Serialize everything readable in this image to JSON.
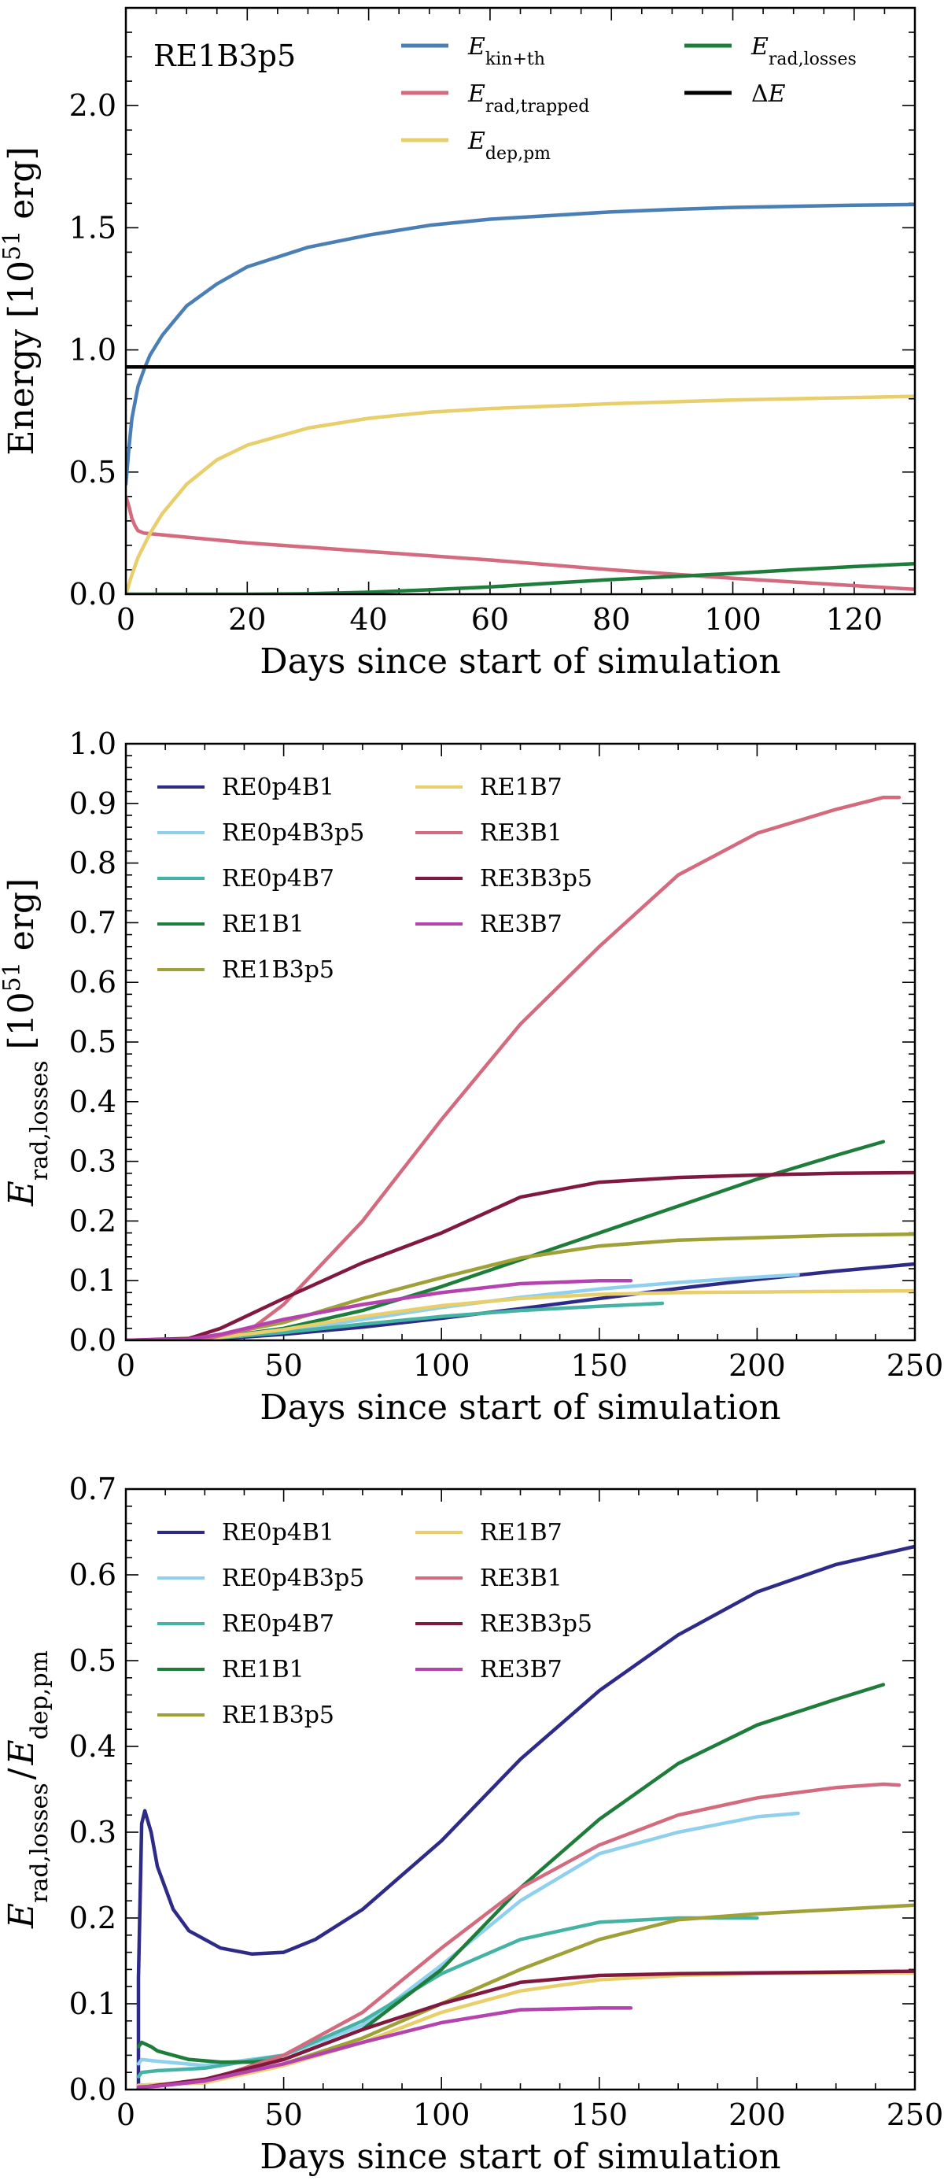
{
  "chart_data": [
    {
      "type": "line",
      "annotation": "RE1B3p5",
      "xlabel": "Days since start of simulation",
      "ylabel": "Energy [10^51 erg]",
      "ylabel_parts": {
        "pre": "Energy [10",
        "sup": "51",
        "post": " erg]"
      },
      "xlim": [
        0,
        130
      ],
      "ylim": [
        0,
        2.4
      ],
      "xticks": [
        0,
        20,
        40,
        60,
        80,
        100,
        120
      ],
      "yticks": [
        0.0,
        0.5,
        1.0,
        1.5,
        2.0
      ],
      "legend_location": "top",
      "series": [
        {
          "name": "E_kin+th",
          "label_main": "E",
          "label_sub": "kin+th",
          "color": "#4a7fb5",
          "x": [
            0,
            0.5,
            1,
            2,
            3,
            4,
            6,
            8,
            10,
            15,
            20,
            30,
            40,
            50,
            60,
            70,
            80,
            90,
            100,
            110,
            120,
            130
          ],
          "y": [
            0.45,
            0.6,
            0.72,
            0.85,
            0.92,
            0.98,
            1.06,
            1.12,
            1.18,
            1.27,
            1.34,
            1.42,
            1.47,
            1.51,
            1.535,
            1.55,
            1.565,
            1.575,
            1.583,
            1.588,
            1.592,
            1.595
          ]
        },
        {
          "name": "E_rad,trapped",
          "label_main": "E",
          "label_sub": "rad,trapped",
          "color": "#d46a7e",
          "x": [
            0,
            0.5,
            1,
            1.5,
            2,
            3,
            5,
            20,
            40,
            60,
            80,
            100,
            120,
            130
          ],
          "y": [
            0.4,
            0.36,
            0.31,
            0.28,
            0.26,
            0.25,
            0.245,
            0.21,
            0.175,
            0.14,
            0.1,
            0.065,
            0.035,
            0.02
          ]
        },
        {
          "name": "E_dep,pm",
          "label_main": "E",
          "label_sub": "dep,pm",
          "color": "#e8cf6c",
          "x": [
            0,
            1,
            2,
            4,
            6,
            10,
            15,
            20,
            30,
            40,
            50,
            60,
            80,
            100,
            120,
            130
          ],
          "y": [
            0.0,
            0.08,
            0.15,
            0.25,
            0.33,
            0.45,
            0.55,
            0.61,
            0.68,
            0.72,
            0.745,
            0.76,
            0.78,
            0.795,
            0.805,
            0.81
          ]
        },
        {
          "name": "E_rad,losses",
          "label_main": "E",
          "label_sub": "rad,losses",
          "color": "#1e7d3a",
          "x": [
            0,
            20,
            30,
            40,
            50,
            60,
            70,
            80,
            90,
            100,
            110,
            120,
            130
          ],
          "y": [
            0.0,
            0.0,
            0.002,
            0.008,
            0.018,
            0.03,
            0.045,
            0.06,
            0.072,
            0.085,
            0.1,
            0.113,
            0.125
          ]
        },
        {
          "name": "ΔE",
          "label_main": "ΔE",
          "label_sub": "",
          "color": "#000000",
          "x": [
            0,
            130
          ],
          "y": [
            0.93,
            0.93
          ]
        }
      ]
    },
    {
      "type": "line",
      "xlabel": "Days since start of simulation",
      "ylabel": "E_rad,losses [10^51 erg]",
      "ylabel_parts": {
        "main": "E",
        "sub": "rad,losses",
        "pre": " [10",
        "sup": "51",
        "post": " erg]"
      },
      "xlim": [
        0,
        250
      ],
      "ylim": [
        0,
        1.0
      ],
      "xticks": [
        0,
        50,
        100,
        150,
        200,
        250
      ],
      "yticks": [
        0.0,
        0.1,
        0.2,
        0.3,
        0.4,
        0.5,
        0.6,
        0.7,
        0.8,
        0.9,
        1.0
      ],
      "legend_location": "upper-left",
      "series": [
        {
          "name": "RE0p4B1",
          "color": "#2e2a87",
          "x": [
            0,
            25,
            50,
            75,
            100,
            125,
            150,
            175,
            200,
            225,
            250
          ],
          "y": [
            0,
            0.001,
            0.01,
            0.022,
            0.037,
            0.053,
            0.07,
            0.087,
            0.102,
            0.116,
            0.128
          ]
        },
        {
          "name": "RE0p4B3p5",
          "color": "#8fd0ee",
          "x": [
            0,
            25,
            50,
            75,
            100,
            125,
            150,
            175,
            200,
            213
          ],
          "y": [
            0,
            0.002,
            0.015,
            0.035,
            0.055,
            0.072,
            0.086,
            0.097,
            0.106,
            0.11
          ]
        },
        {
          "name": "RE0p4B7",
          "color": "#45b3a3",
          "x": [
            0,
            25,
            50,
            75,
            100,
            125,
            150,
            170
          ],
          "y": [
            0,
            0.002,
            0.013,
            0.027,
            0.04,
            0.05,
            0.057,
            0.062
          ]
        },
        {
          "name": "RE1B1",
          "color": "#1e7d3a",
          "x": [
            0,
            25,
            50,
            75,
            100,
            125,
            150,
            175,
            200,
            225,
            240
          ],
          "y": [
            0,
            0.002,
            0.02,
            0.05,
            0.09,
            0.135,
            0.18,
            0.225,
            0.27,
            0.31,
            0.333
          ]
        },
        {
          "name": "RE1B3p5",
          "color": "#a0a038",
          "x": [
            0,
            25,
            50,
            75,
            100,
            125,
            150,
            175,
            200,
            225,
            250
          ],
          "y": [
            0,
            0.004,
            0.03,
            0.07,
            0.105,
            0.138,
            0.158,
            0.168,
            0.172,
            0.176,
            0.178
          ]
        },
        {
          "name": "RE1B7",
          "color": "#e8cf6c",
          "x": [
            0,
            25,
            50,
            75,
            100,
            125,
            150,
            175,
            200,
            225,
            250
          ],
          "y": [
            0,
            0.002,
            0.018,
            0.04,
            0.058,
            0.07,
            0.077,
            0.08,
            0.081,
            0.082,
            0.083
          ]
        },
        {
          "name": "RE3B1",
          "color": "#d46a7e",
          "x": [
            0,
            25,
            40,
            50,
            75,
            100,
            125,
            150,
            175,
            200,
            225,
            240,
            245
          ],
          "y": [
            0,
            0.002,
            0.02,
            0.06,
            0.2,
            0.37,
            0.53,
            0.66,
            0.78,
            0.85,
            0.89,
            0.91,
            0.91
          ]
        },
        {
          "name": "RE3B3p5",
          "color": "#80183f",
          "x": [
            0,
            20,
            30,
            50,
            75,
            100,
            125,
            150,
            175,
            200,
            225,
            250
          ],
          "y": [
            0,
            0.003,
            0.02,
            0.07,
            0.13,
            0.18,
            0.24,
            0.265,
            0.273,
            0.277,
            0.28,
            0.281
          ]
        },
        {
          "name": "RE3B7",
          "color": "#b443b0",
          "x": [
            0,
            20,
            30,
            50,
            75,
            100,
            125,
            150,
            160
          ],
          "y": [
            0,
            0.002,
            0.01,
            0.035,
            0.06,
            0.08,
            0.095,
            0.1,
            0.1
          ]
        }
      ]
    },
    {
      "type": "line",
      "xlabel": "Days since start of simulation",
      "ylabel": "E_rad,losses / E_dep,pm",
      "ylabel_parts": {
        "main1": "E",
        "sub1": "rad,losses",
        "mid": "/",
        "main2": "E",
        "sub2": "dep,pm"
      },
      "xlim": [
        0,
        250
      ],
      "ylim": [
        0,
        0.7
      ],
      "xticks": [
        0,
        50,
        100,
        150,
        200,
        250
      ],
      "yticks": [
        0.0,
        0.1,
        0.2,
        0.3,
        0.4,
        0.5,
        0.6,
        0.7
      ],
      "legend_location": "upper-left",
      "series": [
        {
          "name": "RE0p4B1",
          "color": "#2e2a87",
          "x": [
            4,
            4,
            5,
            6,
            8,
            10,
            15,
            20,
            30,
            40,
            50,
            60,
            75,
            100,
            125,
            150,
            175,
            200,
            225,
            250
          ],
          "y": [
            0.0,
            0.13,
            0.31,
            0.325,
            0.3,
            0.26,
            0.21,
            0.185,
            0.165,
            0.158,
            0.16,
            0.175,
            0.21,
            0.29,
            0.385,
            0.465,
            0.53,
            0.58,
            0.612,
            0.633
          ]
        },
        {
          "name": "RE0p4B3p5",
          "color": "#8fd0ee",
          "x": [
            4,
            5,
            10,
            25,
            50,
            75,
            100,
            125,
            150,
            175,
            200,
            213
          ],
          "y": [
            0.03,
            0.035,
            0.033,
            0.028,
            0.04,
            0.075,
            0.145,
            0.22,
            0.275,
            0.3,
            0.318,
            0.322
          ]
        },
        {
          "name": "RE0p4B7",
          "color": "#45b3a3",
          "x": [
            4,
            5,
            10,
            25,
            50,
            75,
            100,
            125,
            150,
            175,
            200
          ],
          "y": [
            0.015,
            0.02,
            0.022,
            0.025,
            0.04,
            0.08,
            0.135,
            0.175,
            0.195,
            0.2,
            0.2
          ]
        },
        {
          "name": "RE1B1",
          "color": "#1e7d3a",
          "x": [
            4,
            5,
            8,
            10,
            15,
            20,
            30,
            40,
            50,
            75,
            100,
            125,
            150,
            175,
            200,
            225,
            240
          ],
          "y": [
            0.05,
            0.055,
            0.05,
            0.045,
            0.04,
            0.035,
            0.032,
            0.032,
            0.035,
            0.07,
            0.14,
            0.235,
            0.315,
            0.38,
            0.425,
            0.455,
            0.472
          ]
        },
        {
          "name": "RE1B3p5",
          "color": "#a0a038",
          "x": [
            4,
            10,
            25,
            50,
            75,
            100,
            125,
            150,
            175,
            200,
            225,
            250
          ],
          "y": [
            0.005,
            0.006,
            0.008,
            0.03,
            0.06,
            0.1,
            0.14,
            0.175,
            0.198,
            0.205,
            0.21,
            0.215
          ]
        },
        {
          "name": "RE1B7",
          "color": "#e8cf6c",
          "x": [
            4,
            10,
            25,
            50,
            75,
            100,
            125,
            150,
            175,
            200,
            225,
            250
          ],
          "y": [
            0.005,
            0.006,
            0.008,
            0.028,
            0.055,
            0.09,
            0.115,
            0.128,
            0.133,
            0.135,
            0.136,
            0.136
          ]
        },
        {
          "name": "RE3B1",
          "color": "#d46a7e",
          "x": [
            4,
            10,
            25,
            50,
            75,
            100,
            125,
            150,
            175,
            200,
            225,
            240,
            245
          ],
          "y": [
            0.002,
            0.004,
            0.01,
            0.04,
            0.09,
            0.165,
            0.235,
            0.285,
            0.32,
            0.34,
            0.352,
            0.356,
            0.355
          ]
        },
        {
          "name": "RE3B3p5",
          "color": "#80183f",
          "x": [
            4,
            10,
            25,
            50,
            75,
            100,
            125,
            150,
            175,
            200,
            225,
            250
          ],
          "y": [
            0.002,
            0.005,
            0.012,
            0.035,
            0.07,
            0.1,
            0.125,
            0.133,
            0.135,
            0.136,
            0.137,
            0.138
          ]
        },
        {
          "name": "RE3B7",
          "color": "#b443b0",
          "x": [
            4,
            10,
            25,
            50,
            75,
            100,
            125,
            150,
            160
          ],
          "y": [
            0.003,
            0.004,
            0.01,
            0.03,
            0.055,
            0.078,
            0.093,
            0.095,
            0.095
          ]
        }
      ]
    }
  ]
}
